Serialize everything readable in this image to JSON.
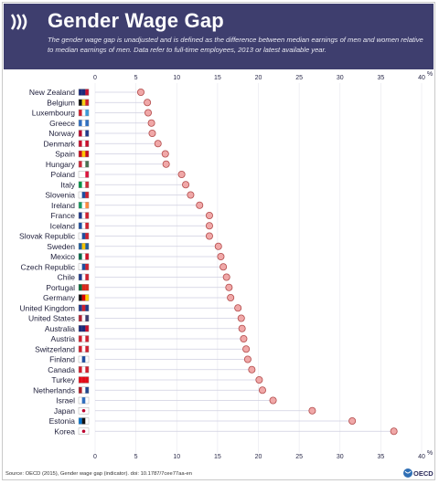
{
  "header": {
    "title": "Gender Wage Gap",
    "subtitle": "The gender wage gap is unadjusted and is defined as the difference between median earnings of men and women relative to median earnings of men. Data refer to full-time employees, 2013 or latest available year."
  },
  "footer": {
    "source": "Source: OECD (2015), Gender wage gap (indicator). doi: 10.1787/7cee77aa-en",
    "logo_text": "OECD"
  },
  "colors": {
    "header_bg": "#3e3e6e",
    "marker_fill": "#f0a8a8",
    "marker_stroke": "#b24a4a",
    "stem": "#cfcfe0",
    "grid": "#e6e6ee"
  },
  "chart_data": {
    "type": "scatter",
    "orientation": "horizontal",
    "title": "Gender Wage Gap",
    "xlabel": "",
    "ylabel": "",
    "unit": "%",
    "xlim": [
      0,
      40
    ],
    "xticks": [
      0,
      5,
      10,
      15,
      20,
      25,
      30,
      35,
      40
    ],
    "grid": true,
    "categories": [
      "New Zealand",
      "Belgium",
      "Luxembourg",
      "Greece",
      "Norway",
      "Denmark",
      "Spain",
      "Hungary",
      "Poland",
      "Italy",
      "Slovenia",
      "Ireland",
      "France",
      "Iceland",
      "Slovak Republic",
      "Sweden",
      "Mexico",
      "Czech Republic",
      "Chile",
      "Portugal",
      "Germany",
      "United Kingdom",
      "United States",
      "Australia",
      "Austria",
      "Switzerland",
      "Finland",
      "Canada",
      "Turkey",
      "Netherlands",
      "Israel",
      "Japan",
      "Estonia",
      "Korea"
    ],
    "values": [
      5.6,
      6.4,
      6.5,
      6.9,
      7.0,
      7.7,
      8.6,
      8.7,
      10.6,
      11.1,
      11.7,
      12.8,
      14.0,
      14.0,
      14.0,
      15.1,
      15.4,
      15.7,
      16.1,
      16.4,
      16.6,
      17.5,
      17.9,
      18.0,
      18.2,
      18.5,
      18.7,
      19.2,
      20.1,
      20.5,
      21.8,
      26.6,
      31.5,
      36.6
    ]
  }
}
